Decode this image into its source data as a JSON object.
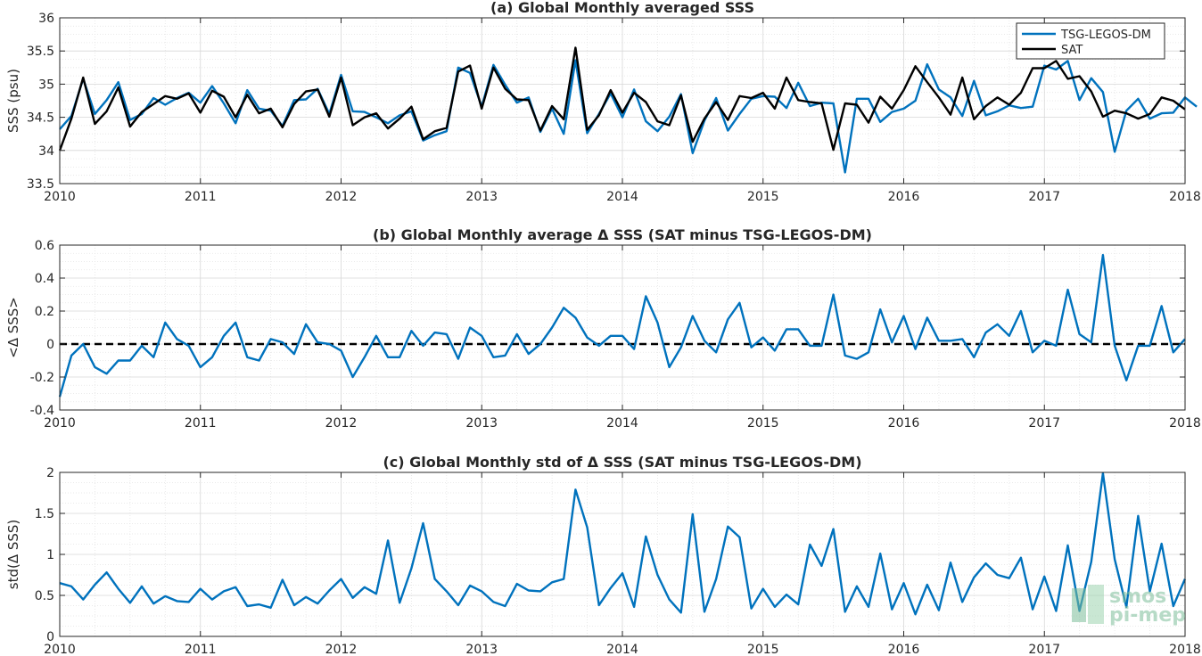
{
  "chart_data": [
    {
      "type": "line",
      "title": "(a) Global Monthly averaged SSS",
      "ylabel": "SSS (psu)",
      "xlim": [
        2010,
        2018
      ],
      "ylim": [
        33.5,
        36
      ],
      "xticks": [
        2010,
        2011,
        2012,
        2013,
        2014,
        2015,
        2016,
        2017,
        2018
      ],
      "yticks": [
        33.5,
        34,
        34.5,
        35,
        35.5,
        36
      ],
      "ytick_labels": [
        "33.5",
        "34",
        "34.5",
        "35",
        "35.5",
        "36"
      ],
      "grid": true,
      "legend": "top-right",
      "x_start": 2010.0,
      "x_step": 0.08333,
      "series": [
        {
          "name": "TSG-LEGOS-DM",
          "color": "#0072bd",
          "values": [
            34.32,
            34.52,
            35.08,
            34.55,
            34.76,
            35.03,
            34.46,
            34.55,
            34.79,
            34.69,
            34.79,
            34.87,
            34.72,
            34.97,
            34.71,
            34.41,
            34.91,
            34.63,
            34.6,
            34.37,
            34.76,
            34.77,
            34.93,
            34.55,
            35.14,
            34.59,
            34.58,
            34.5,
            34.41,
            34.53,
            34.59,
            34.15,
            34.23,
            34.29,
            35.25,
            35.17,
            34.66,
            35.29,
            34.99,
            34.72,
            34.8,
            34.28,
            34.63,
            34.25,
            35.36,
            34.26,
            34.55,
            34.86,
            34.5,
            34.92,
            34.44,
            34.29,
            34.51,
            34.85,
            33.96,
            34.45,
            34.79,
            34.3,
            34.55,
            34.78,
            34.82,
            34.81,
            34.64,
            35.02,
            34.67,
            34.72,
            34.71,
            33.67,
            34.78,
            34.78,
            34.43,
            34.58,
            34.63,
            34.75,
            35.3,
            34.92,
            34.8,
            34.52,
            35.05,
            34.53,
            34.59,
            34.68,
            34.64,
            34.66,
            35.28,
            35.22,
            35.35,
            34.76,
            35.09,
            34.88,
            33.98,
            34.6,
            34.78,
            34.48,
            34.56,
            34.57,
            34.8,
            34.66
          ]
        },
        {
          "name": "SAT",
          "color": "#000000",
          "values": [
            34.0,
            34.48,
            35.1,
            34.4,
            34.59,
            34.95,
            34.36,
            34.58,
            34.7,
            34.82,
            34.78,
            34.86,
            34.57,
            34.9,
            34.81,
            34.5,
            34.84,
            34.56,
            34.63,
            34.35,
            34.7,
            34.89,
            34.92,
            34.51,
            35.1,
            34.38,
            34.5,
            34.56,
            34.33,
            34.48,
            34.66,
            34.17,
            34.29,
            34.34,
            35.19,
            35.28,
            34.63,
            35.25,
            34.93,
            34.77,
            34.76,
            34.3,
            34.67,
            34.47,
            35.55,
            34.31,
            34.53,
            34.91,
            34.57,
            34.87,
            34.73,
            34.44,
            34.38,
            34.83,
            34.13,
            34.48,
            34.73,
            34.46,
            34.82,
            34.79,
            34.87,
            34.63,
            35.1,
            34.76,
            34.73,
            34.71,
            34.01,
            34.71,
            34.69,
            34.42,
            34.81,
            34.63,
            34.91,
            35.27,
            35.03,
            34.8,
            34.54,
            35.1,
            34.47,
            34.67,
            34.8,
            34.69,
            34.87,
            35.24,
            35.24,
            35.35,
            35.08,
            35.12,
            34.89,
            34.51,
            34.6,
            34.56,
            34.48,
            34.55,
            34.8,
            34.75,
            34.62
          ]
        }
      ]
    },
    {
      "type": "line",
      "title": "(b) Global Monthly average Δ SSS (SAT minus TSG-LEGOS-DM)",
      "ylabel": "<Δ SSS>",
      "xlim": [
        2010,
        2018
      ],
      "ylim": [
        -0.4,
        0.6
      ],
      "xticks": [
        2010,
        2011,
        2012,
        2013,
        2014,
        2015,
        2016,
        2017,
        2018
      ],
      "yticks": [
        -0.4,
        -0.2,
        0,
        0.2,
        0.4,
        0.6
      ],
      "ytick_labels": [
        "-0.4",
        "-0.2",
        "0",
        "0.2",
        "0.4",
        "0.6"
      ],
      "grid": true,
      "reference_line": 0,
      "x_start": 2010.0,
      "x_step": 0.08333,
      "series": [
        {
          "color": "#0072bd",
          "values": [
            -0.32,
            -0.07,
            0.0,
            -0.14,
            -0.18,
            -0.1,
            -0.1,
            -0.01,
            -0.08,
            0.13,
            0.03,
            -0.01,
            -0.14,
            -0.08,
            0.05,
            0.13,
            -0.08,
            -0.1,
            0.03,
            0.01,
            -0.06,
            0.12,
            0.01,
            0.0,
            -0.04,
            -0.2,
            -0.08,
            0.05,
            -0.08,
            -0.08,
            0.08,
            -0.01,
            0.07,
            0.06,
            -0.09,
            0.1,
            0.05,
            -0.08,
            -0.07,
            0.06,
            -0.06,
            0.0,
            0.1,
            0.22,
            0.16,
            0.04,
            -0.01,
            0.05,
            0.05,
            -0.03,
            0.29,
            0.13,
            -0.14,
            -0.02,
            0.17,
            0.02,
            -0.05,
            0.15,
            0.25,
            -0.02,
            0.04,
            -0.04,
            0.09,
            0.09,
            -0.01,
            -0.01,
            0.3,
            -0.07,
            -0.09,
            -0.05,
            0.21,
            0.01,
            0.17,
            -0.03,
            0.16,
            0.02,
            0.02,
            0.03,
            -0.08,
            0.07,
            0.12,
            0.05,
            0.2,
            -0.05,
            0.02,
            -0.01,
            0.33,
            0.06,
            0.01,
            0.54,
            -0.01,
            -0.22,
            -0.01,
            -0.01,
            0.23,
            -0.05,
            0.03
          ]
        }
      ]
    },
    {
      "type": "line",
      "title": "(c) Global Monthly std of Δ SSS (SAT minus TSG-LEGOS-DM)",
      "ylabel": "std(Δ SSS)",
      "xlim": [
        2010,
        2018
      ],
      "ylim": [
        0,
        2
      ],
      "xticks": [
        2010,
        2011,
        2012,
        2013,
        2014,
        2015,
        2016,
        2017,
        2018
      ],
      "yticks": [
        0,
        0.5,
        1,
        1.5,
        2
      ],
      "ytick_labels": [
        "0",
        "0.5",
        "1",
        "1.5",
        "2"
      ],
      "grid": true,
      "x_start": 2010.0,
      "x_step": 0.08333,
      "series": [
        {
          "color": "#0072bd",
          "values": [
            0.65,
            0.61,
            0.45,
            0.63,
            0.78,
            0.58,
            0.41,
            0.61,
            0.4,
            0.49,
            0.43,
            0.42,
            0.58,
            0.45,
            0.55,
            0.6,
            0.37,
            0.39,
            0.35,
            0.69,
            0.38,
            0.48,
            0.4,
            0.56,
            0.7,
            0.47,
            0.6,
            0.52,
            1.17,
            0.41,
            0.83,
            1.38,
            0.7,
            0.55,
            0.38,
            0.62,
            0.55,
            0.42,
            0.37,
            0.64,
            0.56,
            0.55,
            0.66,
            0.7,
            1.79,
            1.33,
            0.38,
            0.59,
            0.77,
            0.36,
            1.22,
            0.75,
            0.45,
            0.29,
            1.49,
            0.3,
            0.7,
            1.34,
            1.21,
            0.34,
            0.58,
            0.36,
            0.51,
            0.39,
            1.12,
            0.86,
            1.31,
            0.3,
            0.61,
            0.36,
            1.01,
            0.33,
            0.65,
            0.27,
            0.63,
            0.32,
            0.9,
            0.42,
            0.72,
            0.89,
            0.75,
            0.71,
            0.96,
            0.33,
            0.73,
            0.31,
            1.11,
            0.31,
            0.91,
            1.99,
            0.94,
            0.36,
            1.47,
            0.55,
            1.13,
            0.37,
            0.7
          ]
        }
      ]
    }
  ],
  "watermark": {
    "line1": "smos",
    "line2": "pi-mep"
  }
}
